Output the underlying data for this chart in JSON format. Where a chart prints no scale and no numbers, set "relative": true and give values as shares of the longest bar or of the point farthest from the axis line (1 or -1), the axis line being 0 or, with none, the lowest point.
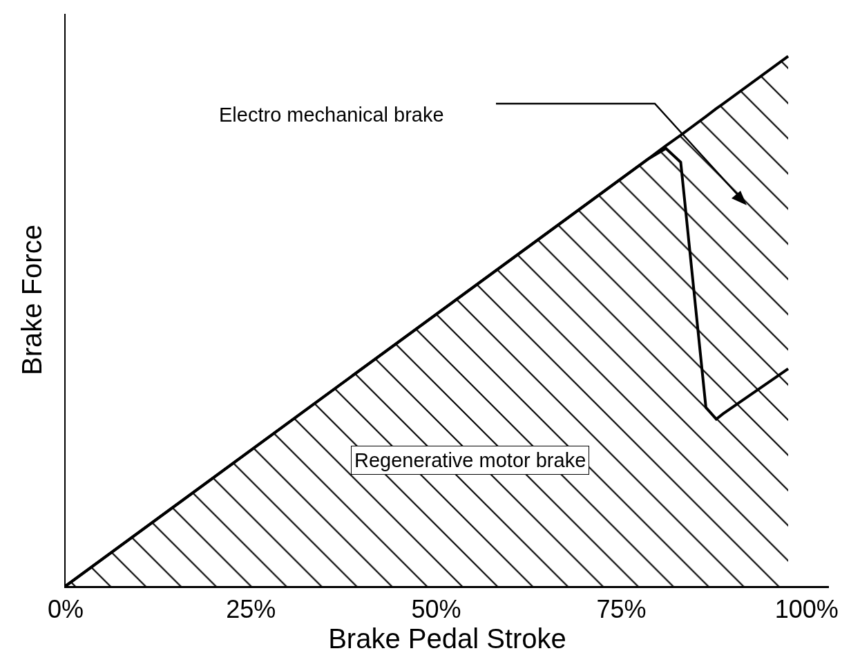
{
  "chart_data": {
    "type": "area",
    "relative": true,
    "xlabel": "Brake Pedal Stroke",
    "ylabel": "Brake Force",
    "x": [
      0,
      78.5,
      81,
      83,
      86.4,
      87.8,
      88.7,
      97.5
    ],
    "xlim": [
      0,
      103
    ],
    "xticks": [
      {
        "value": 0,
        "label": "0%"
      },
      {
        "value": 25,
        "label": "25%"
      },
      {
        "value": 50,
        "label": "50%"
      },
      {
        "value": 75,
        "label": "75%"
      },
      {
        "value": 100,
        "label": "100%"
      }
    ],
    "series": [
      {
        "color": "#000000",
        "values": [
          0,
          0.805,
          0.826,
          0.8,
          0.337,
          0.315,
          0.325,
          0.41
        ]
      },
      {
        "color": "#000000",
        "values": [
          0,
          0.805,
          0.831,
          0.851,
          0.886,
          0.901,
          0.91,
          1
        ]
      }
    ],
    "annotations": [
      "Electro mechanical brake",
      "Regenerative motor brake"
    ],
    "grid": false,
    "marker": "none",
    "line_style": "solid",
    "tick_labels": "x"
  }
}
